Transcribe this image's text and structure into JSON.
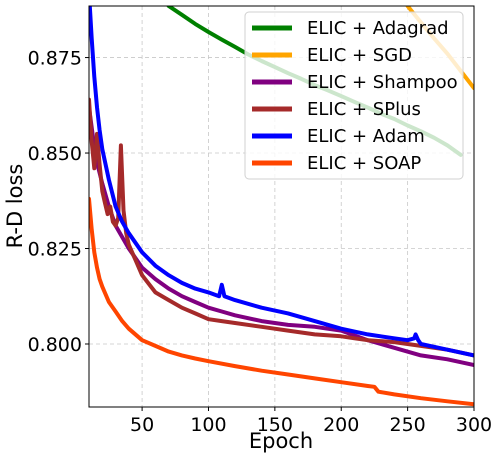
{
  "chart_data": {
    "type": "line",
    "xlabel": "Epoch",
    "ylabel": "R-D loss",
    "xlim": [
      10,
      300
    ],
    "ylim": [
      0.7835,
      0.8885
    ],
    "xticks": [
      50,
      100,
      150,
      200,
      250,
      300
    ],
    "yticks": [
      0.8,
      0.825,
      0.85,
      0.875
    ],
    "xtick_labels": [
      "50",
      "100",
      "150",
      "200",
      "250",
      "300"
    ],
    "ytick_labels": [
      "0.800",
      "0.825",
      "0.850",
      "0.875"
    ],
    "grid": true,
    "legend_position": "top-right",
    "series": [
      {
        "name": "ELIC + Adagrad",
        "color": "#008000",
        "x": [
          70,
          80,
          90,
          100,
          110,
          120,
          130,
          140,
          150,
          160,
          170,
          180,
          190,
          200,
          210,
          220,
          230,
          240,
          250,
          260,
          270,
          280,
          290
        ],
        "y": [
          0.8885,
          0.8862,
          0.8838,
          0.8817,
          0.8797,
          0.8778,
          0.8758,
          0.8741,
          0.8725,
          0.8709,
          0.8694,
          0.8678,
          0.8664,
          0.8649,
          0.8634,
          0.8619,
          0.8603,
          0.8589,
          0.8572,
          0.8557,
          0.854,
          0.852,
          0.8495
        ]
      },
      {
        "name": "ELIC + SGD",
        "color": "#FFA500",
        "x": [
          250,
          260,
          270,
          280,
          290,
          300
        ],
        "y": [
          0.8885,
          0.8842,
          0.88,
          0.876,
          0.8715,
          0.867
        ]
      },
      {
        "name": "ELIC + Shampoo",
        "color": "#800080",
        "x": [
          10,
          15,
          20,
          25,
          30,
          40,
          50,
          60,
          70,
          80,
          90,
          100,
          110,
          120,
          140,
          160,
          180,
          200,
          220,
          240,
          260,
          280,
          300
        ],
        "y": [
          0.862,
          0.849,
          0.842,
          0.836,
          0.831,
          0.825,
          0.82,
          0.817,
          0.8145,
          0.8125,
          0.811,
          0.8095,
          0.8085,
          0.8075,
          0.806,
          0.805,
          0.8045,
          0.8035,
          0.801,
          0.799,
          0.797,
          0.796,
          0.7945
        ]
      },
      {
        "name": "ELIC + SPlus",
        "color": "#A52A2A",
        "x": [
          10,
          12,
          14,
          16,
          18,
          20,
          22,
          24,
          26,
          28,
          30,
          32,
          34,
          36,
          38,
          40,
          45,
          50,
          60,
          70,
          80,
          90,
          100,
          110,
          120,
          140,
          160,
          180,
          200,
          210,
          220,
          240,
          260,
          280,
          300
        ],
        "y": [
          0.864,
          0.853,
          0.846,
          0.855,
          0.847,
          0.84,
          0.837,
          0.834,
          0.836,
          0.832,
          0.831,
          0.833,
          0.852,
          0.835,
          0.829,
          0.826,
          0.822,
          0.818,
          0.8135,
          0.8115,
          0.8095,
          0.808,
          0.8065,
          0.806,
          0.8055,
          0.8045,
          0.8035,
          0.8025,
          0.802,
          0.8015,
          0.801,
          0.8005,
          0.7995,
          0.7985,
          0.797
        ]
      },
      {
        "name": "ELIC + Adam",
        "color": "#0000FF",
        "x": [
          10,
          12,
          14,
          16,
          18,
          20,
          25,
          30,
          35,
          40,
          50,
          60,
          70,
          80,
          90,
          100,
          108,
          110,
          112,
          120,
          140,
          160,
          180,
          200,
          220,
          240,
          250,
          255,
          256,
          258,
          260,
          280,
          300
        ],
        "y": [
          0.892,
          0.88,
          0.87,
          0.862,
          0.856,
          0.851,
          0.843,
          0.836,
          0.832,
          0.829,
          0.824,
          0.8205,
          0.818,
          0.816,
          0.8145,
          0.8135,
          0.8125,
          0.8155,
          0.8125,
          0.8115,
          0.8095,
          0.808,
          0.806,
          0.804,
          0.8025,
          0.8015,
          0.801,
          0.8015,
          0.8025,
          0.801,
          0.8,
          0.7985,
          0.797
        ]
      },
      {
        "name": "ELIC + SOAP",
        "color": "#FF4500",
        "x": [
          10,
          12,
          14,
          16,
          18,
          20,
          25,
          30,
          35,
          40,
          50,
          60,
          70,
          80,
          90,
          100,
          120,
          140,
          160,
          180,
          200,
          220,
          225,
          228,
          240,
          260,
          280,
          300
        ],
        "y": [
          0.838,
          0.83,
          0.824,
          0.82,
          0.817,
          0.815,
          0.811,
          0.8085,
          0.806,
          0.804,
          0.801,
          0.7995,
          0.798,
          0.797,
          0.7962,
          0.7955,
          0.7942,
          0.793,
          0.792,
          0.791,
          0.79,
          0.789,
          0.7888,
          0.7875,
          0.7868,
          0.7858,
          0.785,
          0.7842
        ]
      }
    ]
  }
}
